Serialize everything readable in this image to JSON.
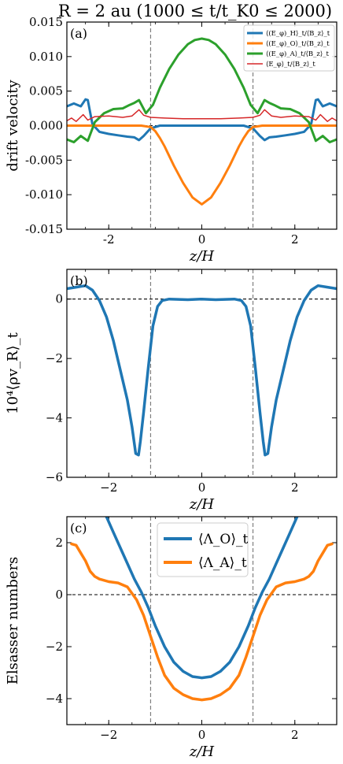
{
  "title": "R = 2 au (1000 ≤ t/t_K0 ≤ 2000)",
  "colors": {
    "blue": "#1f77b4",
    "orange": "#ff7f0e",
    "green": "#2ca02c",
    "red": "#d62728",
    "guide": "#7f7f7f"
  },
  "chart_data": [
    {
      "type": "line",
      "panel_label": "(a)",
      "xlabel": "z/H",
      "ylabel": "drift velocity",
      "xlim": [
        -2.9,
        2.9
      ],
      "ylim": [
        -0.015,
        0.015
      ],
      "yticks": [
        "-0.015",
        "-0.010",
        "-0.005",
        "0.000",
        "0.005",
        "0.010",
        "0.015"
      ],
      "xticks": [
        "-2",
        "0",
        "2"
      ],
      "legend_position": "top-right",
      "vlines": [
        -1.1,
        1.1
      ],
      "hline": 0,
      "series": [
        {
          "name": "⟨(E_φ)_H⟩_t/⟨B_z⟩_t",
          "color": "#1f77b4",
          "width": 3,
          "x": [
            -2.9,
            -2.75,
            -2.6,
            -2.5,
            -2.45,
            -2.35,
            -2.2,
            -2.0,
            -1.8,
            -1.6,
            -1.45,
            -1.35,
            -1.25,
            -1.1,
            -0.9,
            -0.5,
            0,
            0.5,
            0.9,
            1.1,
            1.25,
            1.35,
            1.45,
            1.6,
            1.8,
            2.0,
            2.2,
            2.35,
            2.45,
            2.5,
            2.6,
            2.75,
            2.9
          ],
          "y": [
            0.0028,
            0.0032,
            0.0028,
            0.0038,
            0.0037,
            0.0002,
            -0.0009,
            -0.0012,
            -0.0014,
            -0.0016,
            -0.0017,
            -0.0021,
            -0.0015,
            -0.0004,
            0.0,
            0.0,
            0.0,
            0.0,
            0.0,
            -0.0004,
            -0.0015,
            -0.0021,
            -0.0017,
            -0.0016,
            -0.0014,
            -0.0012,
            -0.0009,
            0.0002,
            0.0037,
            0.0038,
            0.0028,
            0.0032,
            0.0028
          ]
        },
        {
          "name": "⟨(E_φ)_O⟩_t/⟨B_z⟩_t",
          "color": "#ff7f0e",
          "width": 3,
          "x": [
            -2.9,
            -1.3,
            -1.1,
            -1.0,
            -0.9,
            -0.8,
            -0.6,
            -0.4,
            -0.2,
            0,
            0.2,
            0.4,
            0.6,
            0.8,
            0.9,
            1.0,
            1.1,
            1.3,
            2.9
          ],
          "y": [
            0.0,
            0.0,
            -0.0002,
            -0.0008,
            -0.0018,
            -0.003,
            -0.0058,
            -0.0083,
            -0.0104,
            -0.0114,
            -0.0104,
            -0.0083,
            -0.0058,
            -0.003,
            -0.0018,
            -0.0008,
            -0.0002,
            0.0,
            0.0
          ]
        },
        {
          "name": "⟨(E_φ)_A⟩_t/⟨B_z⟩_t",
          "color": "#2ca02c",
          "width": 3,
          "x": [
            -2.9,
            -2.75,
            -2.6,
            -2.45,
            -2.3,
            -2.1,
            -1.9,
            -1.7,
            -1.55,
            -1.45,
            -1.35,
            -1.2,
            -1.05,
            -0.9,
            -0.7,
            -0.5,
            -0.3,
            -0.15,
            0,
            0.15,
            0.3,
            0.5,
            0.7,
            0.9,
            1.05,
            1.2,
            1.35,
            1.45,
            1.55,
            1.7,
            1.9,
            2.1,
            2.3,
            2.45,
            2.6,
            2.75,
            2.9
          ],
          "y": [
            -0.002,
            -0.0024,
            -0.0015,
            -0.0022,
            0.0005,
            0.0018,
            0.0024,
            0.0025,
            0.003,
            0.0033,
            0.0037,
            0.0018,
            0.003,
            0.0055,
            0.0082,
            0.0103,
            0.0118,
            0.0124,
            0.0126,
            0.0124,
            0.0118,
            0.0103,
            0.0082,
            0.0055,
            0.003,
            0.0018,
            0.0037,
            0.0033,
            0.003,
            0.0025,
            0.0024,
            0.0018,
            0.0005,
            -0.0022,
            -0.0015,
            -0.0024,
            -0.002
          ]
        },
        {
          "name": "⟨E_φ⟩_t/⟨B_z⟩_t",
          "color": "#d62728",
          "width": 1.5,
          "x": [
            -2.9,
            -2.8,
            -2.7,
            -2.55,
            -2.45,
            -2.3,
            -2.0,
            -1.7,
            -1.5,
            -1.35,
            -1.25,
            -1.1,
            -0.8,
            -0.4,
            0,
            0.4,
            0.8,
            1.1,
            1.25,
            1.35,
            1.5,
            1.7,
            2.0,
            2.3,
            2.45,
            2.55,
            2.7,
            2.8,
            2.9
          ],
          "y": [
            0.0007,
            0.0011,
            0.0006,
            0.0016,
            0.0008,
            0.0013,
            0.0014,
            0.0012,
            0.0014,
            0.0023,
            0.0015,
            0.0012,
            0.0011,
            0.001,
            0.001,
            0.001,
            0.0011,
            0.0012,
            0.0015,
            0.0023,
            0.0014,
            0.0012,
            0.0014,
            0.0013,
            0.0008,
            0.0016,
            0.0006,
            0.0011,
            0.0007
          ]
        }
      ]
    },
    {
      "type": "line",
      "panel_label": "(b)",
      "xlabel": "z/H",
      "ylabel": "10⁴⟨ρv_R⟩_t",
      "xlim": [
        -2.9,
        2.9
      ],
      "ylim": [
        -6,
        1
      ],
      "yticks": [
        "−6",
        "−4",
        "−2",
        "0"
      ],
      "xticks": [
        "−2",
        "0",
        "2"
      ],
      "vlines": [
        -1.1,
        1.1
      ],
      "hline": 0,
      "series": [
        {
          "name": "",
          "color": "#1f77b4",
          "width": 3.5,
          "x": [
            -2.9,
            -2.7,
            -2.5,
            -2.35,
            -2.2,
            -2.05,
            -1.9,
            -1.75,
            -1.6,
            -1.5,
            -1.42,
            -1.36,
            -1.32,
            -1.25,
            -1.15,
            -1.05,
            -0.95,
            -0.85,
            -0.7,
            -0.3,
            0,
            0.3,
            0.7,
            0.85,
            0.95,
            1.05,
            1.15,
            1.25,
            1.32,
            1.36,
            1.42,
            1.5,
            1.6,
            1.75,
            1.9,
            2.05,
            2.2,
            2.35,
            2.5,
            2.7,
            2.9
          ],
          "y": [
            0.35,
            0.4,
            0.45,
            0.3,
            -0.05,
            -0.6,
            -1.4,
            -2.4,
            -3.4,
            -4.3,
            -5.2,
            -5.25,
            -4.8,
            -3.8,
            -2.3,
            -0.9,
            -0.25,
            -0.05,
            0.0,
            -0.02,
            0.0,
            -0.02,
            0.0,
            -0.05,
            -0.25,
            -0.9,
            -2.3,
            -3.8,
            -4.8,
            -5.25,
            -5.2,
            -4.3,
            -3.4,
            -2.4,
            -1.4,
            -0.6,
            -0.05,
            0.3,
            0.45,
            0.4,
            0.35
          ]
        }
      ]
    },
    {
      "type": "line",
      "panel_label": "(c)",
      "xlabel": "z/H",
      "ylabel": "Elsasser numbers",
      "xlim": [
        -2.9,
        2.9
      ],
      "ylim": [
        -5,
        3
      ],
      "yticks": [
        "−4",
        "−2",
        "0",
        "2"
      ],
      "xticks": [
        "−2",
        "0",
        "2"
      ],
      "legend_position": "top-center",
      "vlines": [
        -1.1,
        1.1
      ],
      "hline": 0,
      "series": [
        {
          "name": "⟨Λ_O⟩_t",
          "color": "#1f77b4",
          "width": 3.5,
          "x": [
            -2.05,
            -1.9,
            -1.75,
            -1.6,
            -1.45,
            -1.3,
            -1.15,
            -1.0,
            -0.8,
            -0.6,
            -0.4,
            -0.2,
            0,
            0.2,
            0.4,
            0.6,
            0.8,
            1.0,
            1.15,
            1.3,
            1.45,
            1.6,
            1.75,
            1.9,
            2.05
          ],
          "y": [
            3.0,
            2.4,
            1.8,
            1.2,
            0.6,
            0.1,
            -0.5,
            -1.2,
            -2.0,
            -2.6,
            -2.95,
            -3.15,
            -3.2,
            -3.15,
            -2.95,
            -2.6,
            -2.0,
            -1.2,
            -0.5,
            0.1,
            0.6,
            1.2,
            1.8,
            2.4,
            3.0
          ]
        },
        {
          "name": "⟨Λ_A⟩_t",
          "color": "#ff7f0e",
          "width": 3.5,
          "x": [
            -2.8,
            -2.7,
            -2.6,
            -2.5,
            -2.4,
            -2.3,
            -2.2,
            -2.0,
            -1.8,
            -1.6,
            -1.4,
            -1.25,
            -1.1,
            -0.95,
            -0.8,
            -0.6,
            -0.4,
            -0.2,
            0,
            0.2,
            0.4,
            0.6,
            0.8,
            0.95,
            1.1,
            1.25,
            1.4,
            1.6,
            1.8,
            2.0,
            2.2,
            2.3,
            2.4,
            2.5,
            2.6,
            2.7,
            2.8
          ],
          "y": [
            1.95,
            1.9,
            1.6,
            1.3,
            0.9,
            0.7,
            0.6,
            0.5,
            0.45,
            0.3,
            -0.2,
            -0.8,
            -1.6,
            -2.4,
            -3.1,
            -3.6,
            -3.85,
            -4.0,
            -4.05,
            -4.0,
            -3.85,
            -3.6,
            -3.1,
            -2.4,
            -1.6,
            -0.8,
            -0.2,
            0.3,
            0.45,
            0.5,
            0.6,
            0.7,
            0.9,
            1.3,
            1.6,
            1.9,
            1.95
          ]
        }
      ]
    }
  ]
}
